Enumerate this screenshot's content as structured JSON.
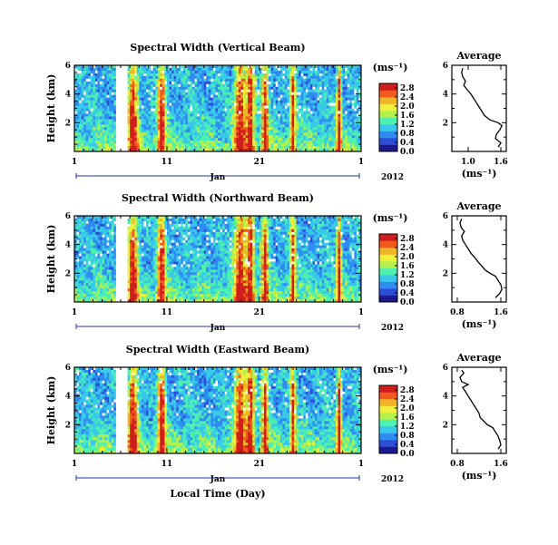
{
  "chart_data": [
    {
      "type": "heatmap",
      "title": "Spectral Width (Vertical Beam)",
      "ylabel": "Height (km)",
      "xlabel": "",
      "x_tick_labels": [
        "1",
        "11",
        "21",
        "1"
      ],
      "month_label": "Jan",
      "year_label": "2012",
      "y_tick_labels": [
        "6",
        "4",
        "2"
      ],
      "ylim": [
        0,
        6
      ],
      "colorbar": {
        "unit": "(ms⁻¹)",
        "tick_labels": [
          "0.0",
          "0.4",
          "0.8",
          "1.2",
          "1.6",
          "2.0",
          "2.4",
          "2.8"
        ],
        "range": [
          0.0,
          3.0
        ],
        "colormap": [
          "#1a1a8c",
          "#2d4fd6",
          "#2f8cf0",
          "#38c9e8",
          "#4ef0b0",
          "#b4f04c",
          "#f0f03c",
          "#f0b428",
          "#f05a1e",
          "#d01e1e"
        ]
      },
      "profile": {
        "title": "Average",
        "xlabel": "(ms⁻¹)",
        "x_tick_labels": [
          "1.0",
          "1.6"
        ],
        "y_tick_labels": [
          "6",
          "4",
          "2"
        ],
        "xlim": [
          0.7,
          1.7
        ],
        "ylim": [
          0,
          6
        ],
        "heights_km": [
          0.3,
          0.6,
          0.9,
          1.2,
          1.5,
          1.8,
          2.0,
          2.2,
          2.5,
          2.8,
          3.1,
          3.4,
          3.7,
          4.0,
          4.3,
          4.6,
          4.9,
          5.2,
          5.5,
          5.8
        ],
        "values": [
          1.55,
          1.6,
          1.5,
          1.52,
          1.58,
          1.62,
          1.55,
          1.4,
          1.3,
          1.25,
          1.2,
          1.15,
          1.1,
          1.05,
          0.98,
          0.92,
          0.95,
          0.9,
          0.88,
          0.9
        ]
      }
    },
    {
      "type": "heatmap",
      "title": "Spectral Width (Northward Beam)",
      "ylabel": "Height (km)",
      "xlabel": "",
      "x_tick_labels": [
        "1",
        "11",
        "21",
        "1"
      ],
      "month_label": "Jan",
      "year_label": "2012",
      "y_tick_labels": [
        "6",
        "4",
        "2"
      ],
      "ylim": [
        0,
        6
      ],
      "colorbar": {
        "unit": "(ms⁻¹)",
        "tick_labels": [
          "0.0",
          "0.4",
          "0.8",
          "1.2",
          "1.6",
          "2.0",
          "2.4",
          "2.8"
        ],
        "range": [
          0.0,
          3.0
        ],
        "colormap": [
          "#1a1a8c",
          "#2d4fd6",
          "#2f8cf0",
          "#38c9e8",
          "#4ef0b0",
          "#b4f04c",
          "#f0f03c",
          "#f0b428",
          "#f05a1e",
          "#d01e1e"
        ]
      },
      "profile": {
        "title": "Average",
        "xlabel": "(ms⁻¹)",
        "x_tick_labels": [
          "0.8",
          "1.6"
        ],
        "y_tick_labels": [
          "6",
          "4",
          "2"
        ],
        "xlim": [
          0.7,
          1.7
        ],
        "ylim": [
          0,
          6
        ],
        "heights_km": [
          0.3,
          0.6,
          0.9,
          1.2,
          1.5,
          1.8,
          2.0,
          2.2,
          2.5,
          2.8,
          3.1,
          3.4,
          3.7,
          4.0,
          4.3,
          4.6,
          4.9,
          5.2,
          5.5,
          5.8
        ],
        "values": [
          1.5,
          1.58,
          1.62,
          1.6,
          1.55,
          1.5,
          1.4,
          1.32,
          1.25,
          1.18,
          1.12,
          1.05,
          1.0,
          0.95,
          0.9,
          0.88,
          0.93,
          0.87,
          0.85,
          0.88
        ]
      }
    },
    {
      "type": "heatmap",
      "title": "Spectral Width (Eastward Beam)",
      "ylabel": "Height (km)",
      "xlabel": "Local Time (Day)",
      "x_tick_labels": [
        "1",
        "11",
        "21",
        "1"
      ],
      "month_label": "Jan",
      "year_label": "2012",
      "y_tick_labels": [
        "6",
        "4",
        "2"
      ],
      "ylim": [
        0,
        6
      ],
      "colorbar": {
        "unit": "(ms⁻¹)",
        "tick_labels": [
          "0.0",
          "0.4",
          "0.8",
          "1.2",
          "1.6",
          "2.0",
          "2.4",
          "2.8"
        ],
        "range": [
          0.0,
          3.0
        ],
        "colormap": [
          "#1a1a8c",
          "#2d4fd6",
          "#2f8cf0",
          "#38c9e8",
          "#4ef0b0",
          "#b4f04c",
          "#f0f03c",
          "#f0b428",
          "#f05a1e",
          "#d01e1e"
        ]
      },
      "profile": {
        "title": "Average",
        "xlabel": "(ms⁻¹)",
        "x_tick_labels": [
          "0.8",
          "1.6"
        ],
        "y_tick_labels": [
          "6",
          "4",
          "2"
        ],
        "xlim": [
          0.7,
          1.7
        ],
        "ylim": [
          0,
          6
        ],
        "heights_km": [
          0.3,
          0.6,
          0.9,
          1.2,
          1.5,
          1.8,
          2.0,
          2.2,
          2.5,
          2.8,
          3.1,
          3.4,
          3.7,
          4.0,
          4.3,
          4.6,
          4.8,
          5.0,
          5.3,
          5.6,
          5.8
        ],
        "values": [
          1.55,
          1.6,
          1.58,
          1.55,
          1.5,
          1.45,
          1.35,
          1.3,
          1.22,
          1.2,
          1.15,
          1.1,
          1.05,
          1.0,
          0.95,
          0.9,
          1.0,
          0.88,
          0.85,
          0.92,
          0.88
        ]
      }
    }
  ]
}
